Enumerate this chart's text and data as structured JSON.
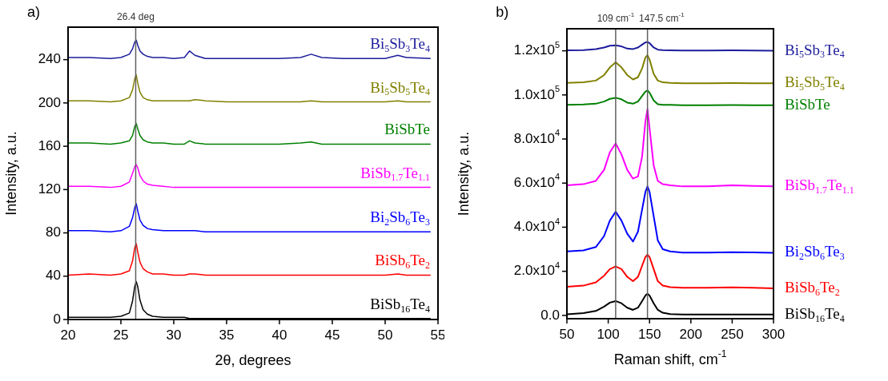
{
  "chart_data": [
    {
      "type": "line",
      "annotations": [
        "a)"
      ],
      "xlabel": "2θ, degrees",
      "ylabel": "Intensity, a.u.",
      "xlim": [
        20,
        55
      ],
      "ylim": [
        0,
        270
      ],
      "xticks": [
        20,
        25,
        30,
        35,
        40,
        45,
        50,
        55
      ],
      "yticks": [
        0,
        40,
        80,
        120,
        160,
        200,
        240
      ],
      "x": [
        20,
        22,
        24,
        25,
        25.8,
        26.1,
        26.3,
        26.45,
        26.6,
        26.8,
        27.1,
        27.5,
        28,
        29,
        30,
        31,
        31.5,
        32,
        33,
        35,
        38,
        40,
        42,
        43,
        44,
        46,
        48,
        50,
        51.2,
        52,
        54.3
      ],
      "ref_lines": [
        {
          "axis": "x",
          "value": 26.4,
          "label": "26.4 deg",
          "color": "#606060"
        }
      ],
      "series": [
        {
          "name": "BiSb$_{16}$Te$_{4}$",
          "color": "#000000",
          "values": [
            2,
            2,
            2,
            3,
            6,
            17,
            30,
            35,
            30,
            18,
            9,
            5,
            3,
            2,
            2,
            2,
            1,
            1,
            1,
            1,
            1,
            1,
            1,
            1,
            1,
            1,
            1,
            1,
            1,
            1,
            1
          ]
        },
        {
          "name": "BiSb$_{6}$Te$_{2}$",
          "color": "#ff0000",
          "values": [
            41,
            42,
            41,
            42,
            45,
            54,
            66,
            70,
            62,
            53,
            47,
            44,
            42,
            42,
            41,
            41,
            42,
            42,
            41,
            41,
            41,
            41,
            41,
            41,
            41,
            41,
            41,
            41,
            42,
            41,
            41
          ]
        },
        {
          "name": "Bi$_{2}$Sb$_{6}$Te$_{3}$",
          "color": "#0000ff",
          "values": [
            82,
            82,
            81,
            82,
            86,
            94,
            103,
            107,
            100,
            92,
            87,
            84,
            83,
            82,
            82,
            82,
            82,
            82,
            81,
            81,
            81,
            81,
            81,
            81,
            81,
            81,
            81,
            81,
            81,
            81,
            81
          ]
        },
        {
          "name": "BiSb$_{1.7}$Te$_{1.1}$",
          "color": "#ff00ff",
          "values": [
            123,
            123,
            122,
            123,
            127,
            135,
            141,
            143,
            140,
            133,
            128,
            125,
            124,
            123,
            122,
            122,
            122,
            122,
            122,
            122,
            122,
            122,
            122,
            122,
            122,
            122,
            122,
            122,
            122,
            122,
            122
          ]
        },
        {
          "name": "BiSbTe",
          "color": "#008000",
          "values": [
            163,
            163,
            162,
            163,
            165,
            170,
            178,
            181,
            176,
            170,
            166,
            164,
            163,
            163,
            162,
            162,
            165,
            163,
            162,
            162,
            162,
            162,
            163,
            164,
            162,
            162,
            162,
            162,
            162,
            162,
            162
          ]
        },
        {
          "name": "Bi$_{5}$Sb$_{5}$Te$_{4}$",
          "color": "#808000",
          "values": [
            202,
            202,
            201,
            202,
            205,
            212,
            222,
            226,
            218,
            210,
            205,
            203,
            202,
            202,
            202,
            202,
            202,
            203,
            202,
            201,
            201,
            201,
            201,
            202,
            201,
            201,
            201,
            201,
            202,
            201,
            201
          ]
        },
        {
          "name": "Bi$_{5}$Sb$_{3}$Te$_{4}$",
          "color": "#1c1c9c",
          "values": [
            242,
            242,
            241,
            242,
            245,
            250,
            256,
            258,
            253,
            248,
            245,
            243,
            242,
            242,
            241,
            242,
            248,
            244,
            241,
            241,
            241,
            241,
            242,
            245,
            242,
            241,
            241,
            241,
            244,
            242,
            241
          ]
        }
      ]
    },
    {
      "type": "line",
      "annotations": [
        "b)"
      ],
      "xlabel": "Raman shift, cm$^{-1}$",
      "ylabel": "Intensity, a.u.",
      "xlim": [
        50,
        300
      ],
      "ylim": [
        -1500,
        130000
      ],
      "xticks": [
        50,
        100,
        150,
        200,
        250,
        300
      ],
      "yticks": [
        {
          "value": 0,
          "label": "0.0"
        },
        {
          "value": 20000,
          "label": "2.0x10$^{4}$"
        },
        {
          "value": 40000,
          "label": "4.0x10$^{4}$"
        },
        {
          "value": 60000,
          "label": "6.0x10$^{4}$"
        },
        {
          "value": 80000,
          "label": "8.0x10$^{4}$"
        },
        {
          "value": 100000,
          "label": "1.0x10$^{5}$"
        },
        {
          "value": 120000,
          "label": "1.2x10$^{5}$"
        }
      ],
      "x": [
        50,
        70,
        85,
        95,
        102,
        109,
        116,
        123,
        130,
        136,
        141,
        145,
        147.5,
        150,
        155,
        160,
        166,
        175,
        190,
        220,
        250,
        275,
        300
      ],
      "ref_lines": [
        {
          "axis": "x",
          "value": 109,
          "label": "109 cm$^{-1}$",
          "color": "#606060"
        },
        {
          "axis": "x",
          "value": 147.5,
          "label": "147.5 cm$^{-1}$",
          "color": "#606060"
        }
      ],
      "series": [
        {
          "name": "BiSb$_{16}$Te$_{4}$",
          "color": "#000000",
          "values": [
            500,
            1000,
            2000,
            4000,
            5800,
            6500,
            5500,
            3500,
            2500,
            3500,
            6500,
            9000,
            9800,
            9000,
            5500,
            2500,
            1200,
            600,
            400,
            400,
            400,
            400,
            400
          ]
        },
        {
          "name": "BiSb$_{6}$Te$_{2}$",
          "color": "#ff0000",
          "values": [
            13000,
            13500,
            15000,
            18000,
            21000,
            22200,
            21000,
            17500,
            15500,
            17500,
            22500,
            26500,
            27500,
            26500,
            21000,
            15500,
            13500,
            12800,
            12500,
            12500,
            12700,
            12500,
            12300
          ]
        },
        {
          "name": "Bi$_{2}$Sb$_{6}$Te$_{3}$",
          "color": "#0000ff",
          "values": [
            29000,
            29500,
            31000,
            36000,
            43000,
            47000,
            43000,
            37000,
            33500,
            38000,
            48000,
            56000,
            58500,
            56000,
            45000,
            34000,
            30000,
            29000,
            28500,
            28500,
            28700,
            28600,
            28400
          ]
        },
        {
          "name": "BiSb$_{1.7}$Te$_{1.1}$",
          "color": "#ff00ff",
          "values": [
            59000,
            59500,
            61000,
            66000,
            74000,
            78000,
            73000,
            66000,
            62000,
            63000,
            72000,
            88000,
            93500,
            85000,
            68000,
            61000,
            59500,
            59000,
            58500,
            58500,
            59000,
            58700,
            58500
          ]
        },
        {
          "name": "BiSbTe",
          "color": "#008000",
          "values": [
            95500,
            95700,
            96000,
            97000,
            98200,
            98700,
            98000,
            96500,
            96000,
            97000,
            99500,
            101500,
            102000,
            101000,
            97500,
            95800,
            95500,
            95500,
            95300,
            95300,
            95400,
            95300,
            95300
          ]
        },
        {
          "name": "Bi$_{5}$Sb$_{5}$Te$_{4}$",
          "color": "#808000",
          "values": [
            105500,
            105700,
            106500,
            109000,
            112500,
            114800,
            112500,
            109000,
            107000,
            108000,
            112000,
            117000,
            118000,
            116000,
            109500,
            106500,
            105700,
            105500,
            105300,
            105300,
            105400,
            105300,
            105300
          ]
        },
        {
          "name": "Bi$_{5}$Sb$_{3}$Te$_{4}$",
          "color": "#1c1c9c",
          "values": [
            120200,
            120300,
            120800,
            121500,
            122300,
            122500,
            122000,
            121000,
            120800,
            121500,
            122800,
            123800,
            124000,
            123500,
            121500,
            120500,
            120300,
            120200,
            120100,
            120100,
            120200,
            120100,
            120000
          ]
        }
      ]
    }
  ]
}
